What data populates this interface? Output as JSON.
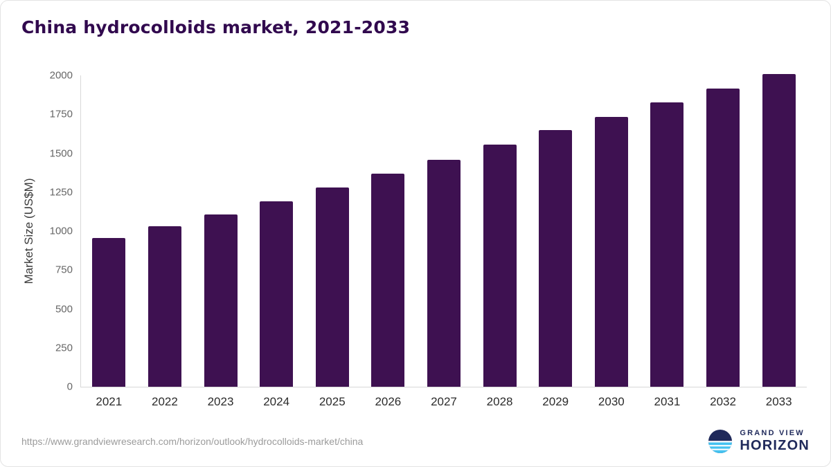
{
  "chart_data": {
    "type": "bar",
    "title": "China hydrocolloids market, 2021-2033",
    "xlabel": "",
    "ylabel": "Market Size (US$M)",
    "categories": [
      "2021",
      "2022",
      "2023",
      "2024",
      "2025",
      "2026",
      "2027",
      "2028",
      "2029",
      "2030",
      "2031",
      "2032",
      "2033"
    ],
    "values": [
      955,
      1030,
      1105,
      1190,
      1280,
      1370,
      1460,
      1555,
      1648,
      1735,
      1825,
      1915,
      2008
    ],
    "ylim": [
      0,
      2000
    ],
    "yticks": [
      0,
      250,
      500,
      750,
      1000,
      1250,
      1500,
      1750,
      2000
    ],
    "grid": false,
    "legend": false,
    "bar_color": "#3e1151"
  },
  "colors": {
    "bar": "#3e1151",
    "title": "#31094e",
    "brand_navy": "#202a5b",
    "brand_blue": "#45c2f0"
  },
  "footer": {
    "source_url": "https://www.grandviewresearch.com/horizon/outlook/hydrocolloids-market/china",
    "brand_line1": "GRAND VIEW",
    "brand_line2": "HORIZON"
  }
}
